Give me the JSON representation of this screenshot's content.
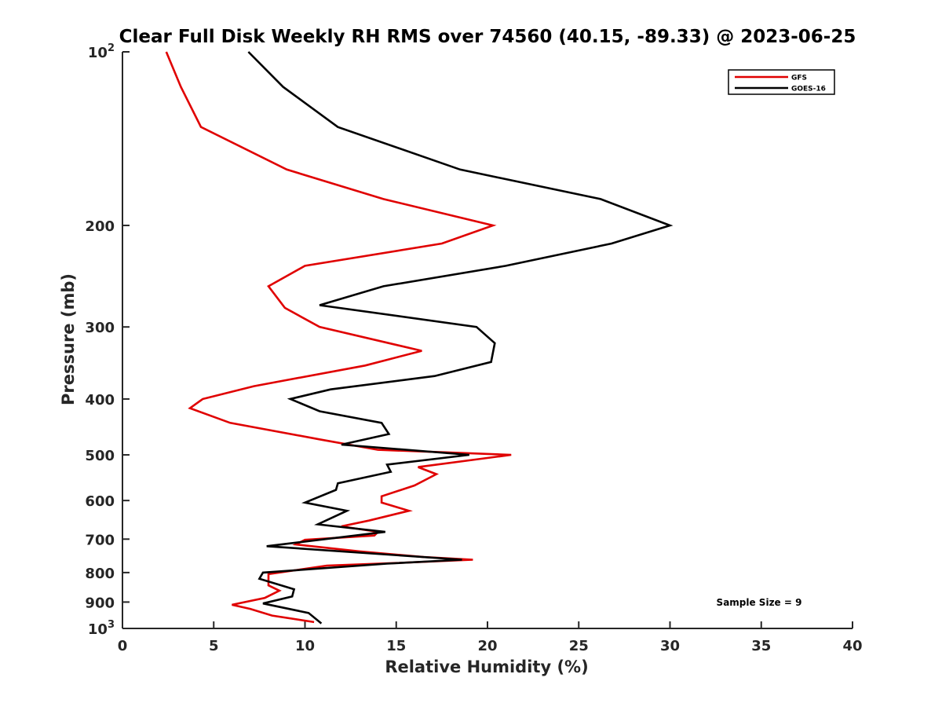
{
  "chart_data": {
    "type": "line",
    "title": "Clear Full Disk Weekly RH RMS over 74560 (40.15, -89.33) @ 2023-06-25",
    "xlabel": "Relative Humidity (%)",
    "ylabel": "Pressure (mb)",
    "xlim": [
      0,
      40
    ],
    "ylim": [
      100,
      1000
    ],
    "y_scale": "log",
    "y_reversed": true,
    "grid": false,
    "legend_position": "top-right",
    "x_ticks": [
      "0",
      "5",
      "10",
      "15",
      "20",
      "25",
      "30",
      "35",
      "40"
    ],
    "y_ticks": [
      {
        "value": 100,
        "base": "10",
        "exp": "2"
      },
      {
        "value": 200,
        "label": "200"
      },
      {
        "value": 300,
        "label": "300"
      },
      {
        "value": 400,
        "label": "400"
      },
      {
        "value": 500,
        "label": "500"
      },
      {
        "value": 600,
        "label": "600"
      },
      {
        "value": 700,
        "label": "700"
      },
      {
        "value": 800,
        "label": "800"
      },
      {
        "value": 900,
        "label": "900"
      },
      {
        "value": 1000,
        "base": "10",
        "exp": "3"
      }
    ],
    "series": [
      {
        "name": "GFS",
        "color": "#e00000",
        "points": [
          [
            2.4,
            100
          ],
          [
            3.2,
            115
          ],
          [
            4.3,
            135
          ],
          [
            9.0,
            160
          ],
          [
            14.3,
            180
          ],
          [
            20.3,
            200
          ],
          [
            17.5,
            215
          ],
          [
            10.0,
            235
          ],
          [
            8.0,
            255
          ],
          [
            8.9,
            278
          ],
          [
            10.8,
            300
          ],
          [
            16.4,
            330
          ],
          [
            13.3,
            350
          ],
          [
            7.2,
            380
          ],
          [
            4.4,
            400
          ],
          [
            3.7,
            415
          ],
          [
            5.9,
            440
          ],
          [
            10.8,
            470
          ],
          [
            14.0,
            490
          ],
          [
            21.3,
            500
          ],
          [
            16.2,
            525
          ],
          [
            17.2,
            540
          ],
          [
            16.0,
            565
          ],
          [
            14.2,
            590
          ],
          [
            14.2,
            605
          ],
          [
            15.7,
            625
          ],
          [
            13.5,
            650
          ],
          [
            12.0,
            665
          ],
          [
            14.0,
            680
          ],
          [
            13.8,
            690
          ],
          [
            10.0,
            702
          ],
          [
            9.5,
            715
          ],
          [
            13.0,
            735
          ],
          [
            16.5,
            752
          ],
          [
            19.2,
            760
          ],
          [
            15.0,
            770
          ],
          [
            11.2,
            778
          ],
          [
            8.0,
            805
          ],
          [
            8.0,
            842
          ],
          [
            8.6,
            860
          ],
          [
            7.8,
            885
          ],
          [
            6.0,
            910
          ],
          [
            7.0,
            925
          ],
          [
            8.2,
            950
          ],
          [
            10.5,
            975
          ]
        ]
      },
      {
        "name": "GOES-16",
        "color": "#000000",
        "points": [
          [
            6.9,
            100
          ],
          [
            8.8,
            115
          ],
          [
            11.8,
            135
          ],
          [
            18.5,
            160
          ],
          [
            26.2,
            180
          ],
          [
            30.0,
            200
          ],
          [
            26.8,
            215
          ],
          [
            21.0,
            235
          ],
          [
            14.3,
            255
          ],
          [
            10.8,
            275
          ],
          [
            19.4,
            300
          ],
          [
            20.4,
            320
          ],
          [
            20.2,
            345
          ],
          [
            17.1,
            365
          ],
          [
            11.4,
            385
          ],
          [
            9.2,
            400
          ],
          [
            10.8,
            420
          ],
          [
            14.2,
            440
          ],
          [
            14.6,
            460
          ],
          [
            12.0,
            480
          ],
          [
            19.0,
            500
          ],
          [
            14.5,
            520
          ],
          [
            14.7,
            535
          ],
          [
            11.8,
            560
          ],
          [
            11.7,
            575
          ],
          [
            10.0,
            605
          ],
          [
            12.3,
            625
          ],
          [
            10.7,
            660
          ],
          [
            14.4,
            680
          ],
          [
            7.9,
            720
          ],
          [
            18.6,
            760
          ],
          [
            14.5,
            772
          ],
          [
            7.7,
            800
          ],
          [
            7.5,
            820
          ],
          [
            9.4,
            855
          ],
          [
            9.3,
            880
          ],
          [
            7.7,
            905
          ],
          [
            10.2,
            940
          ],
          [
            10.9,
            980
          ]
        ]
      }
    ],
    "annotation": "Sample Size = 9"
  }
}
